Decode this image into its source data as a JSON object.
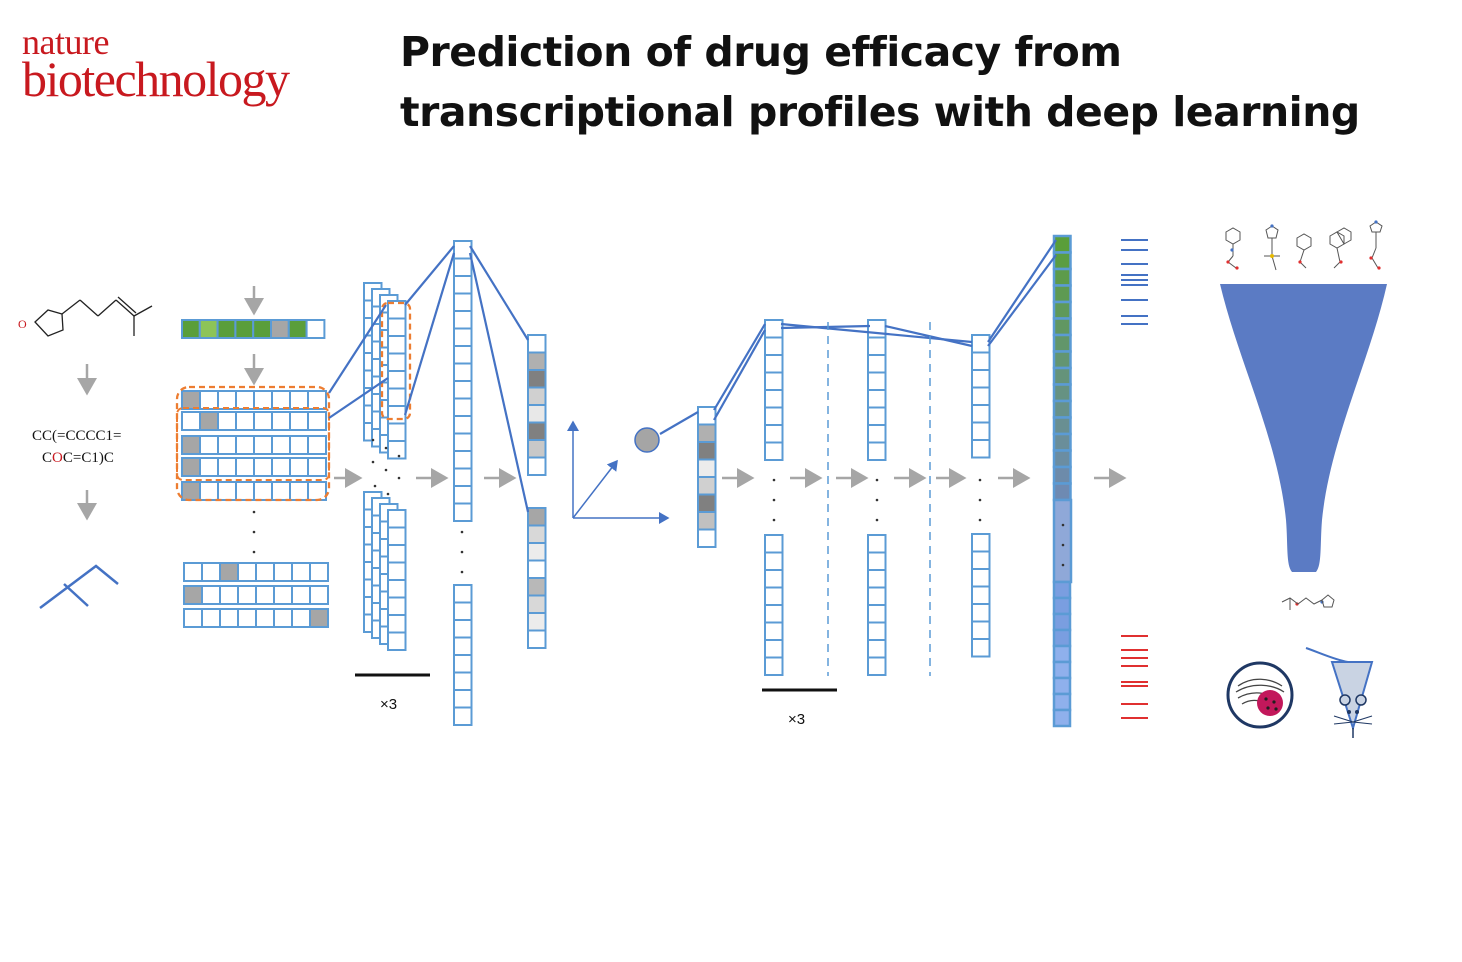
{
  "logo": {
    "line1": "nature",
    "line2": "biotechnology",
    "color": "#c8191f"
  },
  "title": "Prediction of drug efficacy from transcriptional profiles with deep learning",
  "smiles": {
    "line1": "CC(=CCCC1=",
    "line2_pre": "C",
    "line2_o": "O",
    "line2_post": "C=C1)C",
    "o_label": "O"
  },
  "multipliers": {
    "first": "×3",
    "second": "×3"
  },
  "colors": {
    "cell_stroke": "#5b9bd5",
    "connection": "#4472c4",
    "arrow_gray": "#a6a6a6",
    "highlight_dashed": "#ed7d31",
    "funnel": "#5b7bc4",
    "red_bars": "#e03030",
    "green_cells": "#5a9e3a"
  }
}
